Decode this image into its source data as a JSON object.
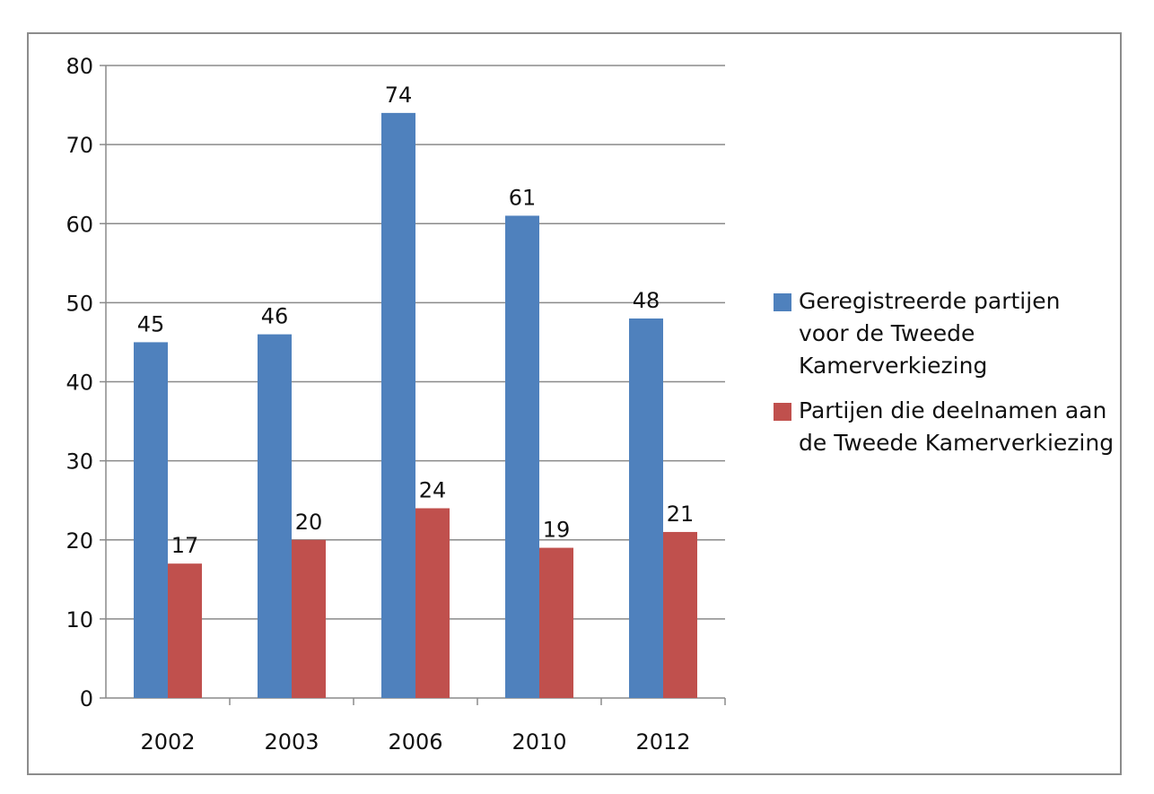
{
  "chart_data": {
    "type": "bar",
    "categories": [
      "2002",
      "2003",
      "2006",
      "2010",
      "2012"
    ],
    "series": [
      {
        "name": "Geregistreerde partijen voor de Tweede Kamerverkiezing",
        "values": [
          45,
          46,
          74,
          61,
          48
        ],
        "color": "#4F81BD"
      },
      {
        "name": "Partijen die deelnamen aan de Tweede Kamerverkiezing",
        "values": [
          17,
          20,
          24,
          19,
          21
        ],
        "color": "#C0504D"
      }
    ],
    "y_ticks": [
      "0",
      "10",
      "20",
      "30",
      "40",
      "50",
      "60",
      "70",
      "80"
    ],
    "ylim": [
      0,
      80
    ],
    "grid": true,
    "legend_position": "right",
    "data_labels": true
  }
}
